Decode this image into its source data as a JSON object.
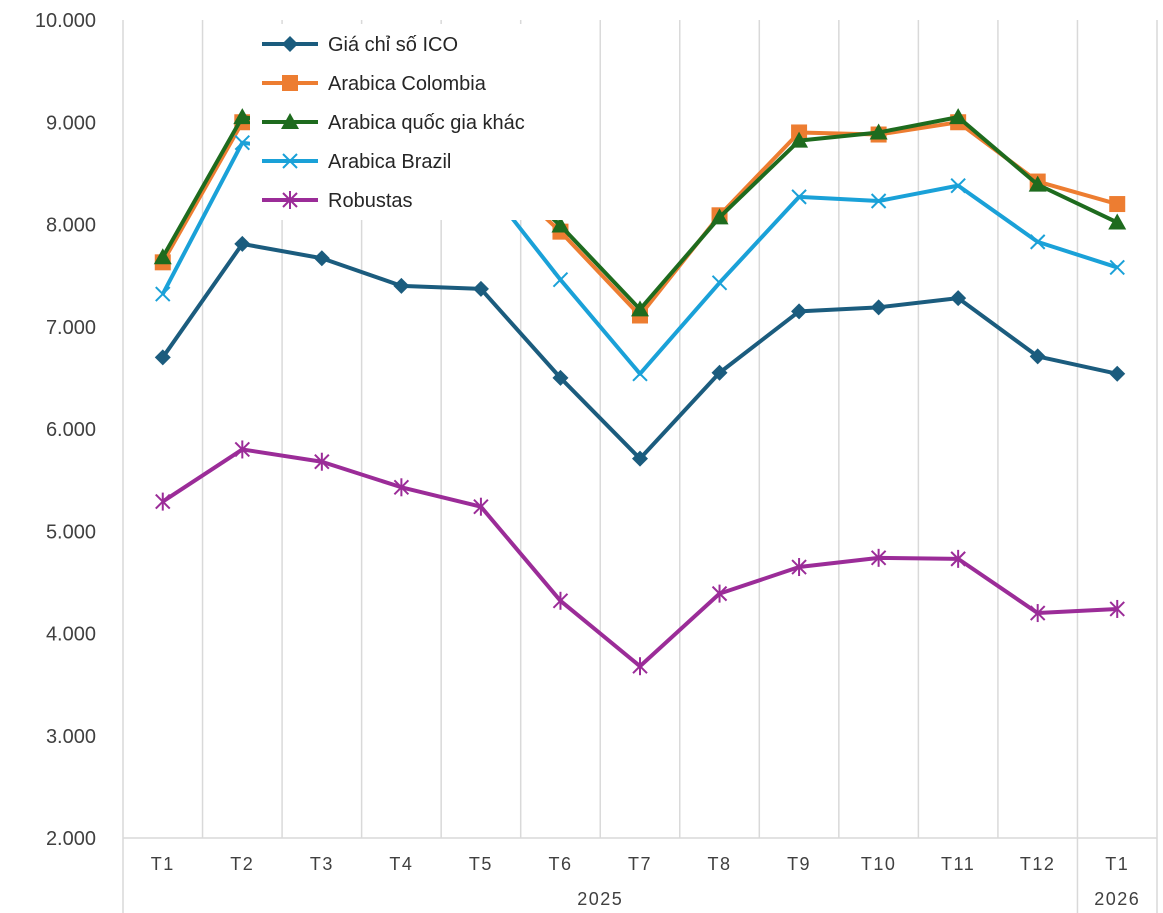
{
  "chart_data": {
    "type": "line",
    "categories": [
      "T1",
      "T2",
      "T3",
      "T4",
      "T5",
      "T6",
      "T7",
      "T8",
      "T9",
      "T10",
      "T11",
      "T12",
      "T1"
    ],
    "groups": [
      {
        "label": "2025",
        "start": 0,
        "end": 11
      },
      {
        "label": "2026",
        "start": 12,
        "end": 12
      }
    ],
    "ylim": [
      2000,
      10000
    ],
    "yticks": [
      2000,
      3000,
      4000,
      5000,
      6000,
      7000,
      8000,
      9000,
      10000
    ],
    "ytick_labels": [
      "2.000",
      "3.000",
      "4.000",
      "5.000",
      "6.000",
      "7.000",
      "8.000",
      "9.000",
      "10.000"
    ],
    "grid": "vertical",
    "legend_position": "top-left",
    "series": [
      {
        "name": "Giá chỉ số ICO",
        "color": "#1B5C7E",
        "marker": "diamond",
        "values": [
          6700,
          7810,
          7670,
          7400,
          7370,
          6500,
          5710,
          6550,
          7150,
          7190,
          7280,
          6710,
          6540
        ]
      },
      {
        "name": "Arabica Colombia",
        "color": "#ED7D31",
        "marker": "square",
        "values": [
          7630,
          9000,
          8900,
          8700,
          8650,
          7930,
          7110,
          8090,
          8900,
          8880,
          9000,
          8420,
          8200
        ]
      },
      {
        "name": "Arabica quốc gia khác",
        "color": "#1E6B1E",
        "marker": "triangle",
        "values": [
          7680,
          9050,
          8950,
          8750,
          8700,
          7990,
          7170,
          8070,
          8820,
          8900,
          9050,
          8390,
          8020
        ]
      },
      {
        "name": "Arabica Brazil",
        "color": "#1AA1D8",
        "marker": "x",
        "values": [
          7320,
          8800,
          8700,
          8500,
          8450,
          7460,
          6540,
          7430,
          8270,
          8230,
          8380,
          7830,
          7580
        ]
      },
      {
        "name": " Robustas",
        "color": "#9B2C98",
        "marker": "star",
        "values": [
          5290,
          5800,
          5680,
          5430,
          5240,
          4320,
          3680,
          4390,
          4650,
          4740,
          4730,
          4200,
          4240
        ]
      }
    ]
  }
}
